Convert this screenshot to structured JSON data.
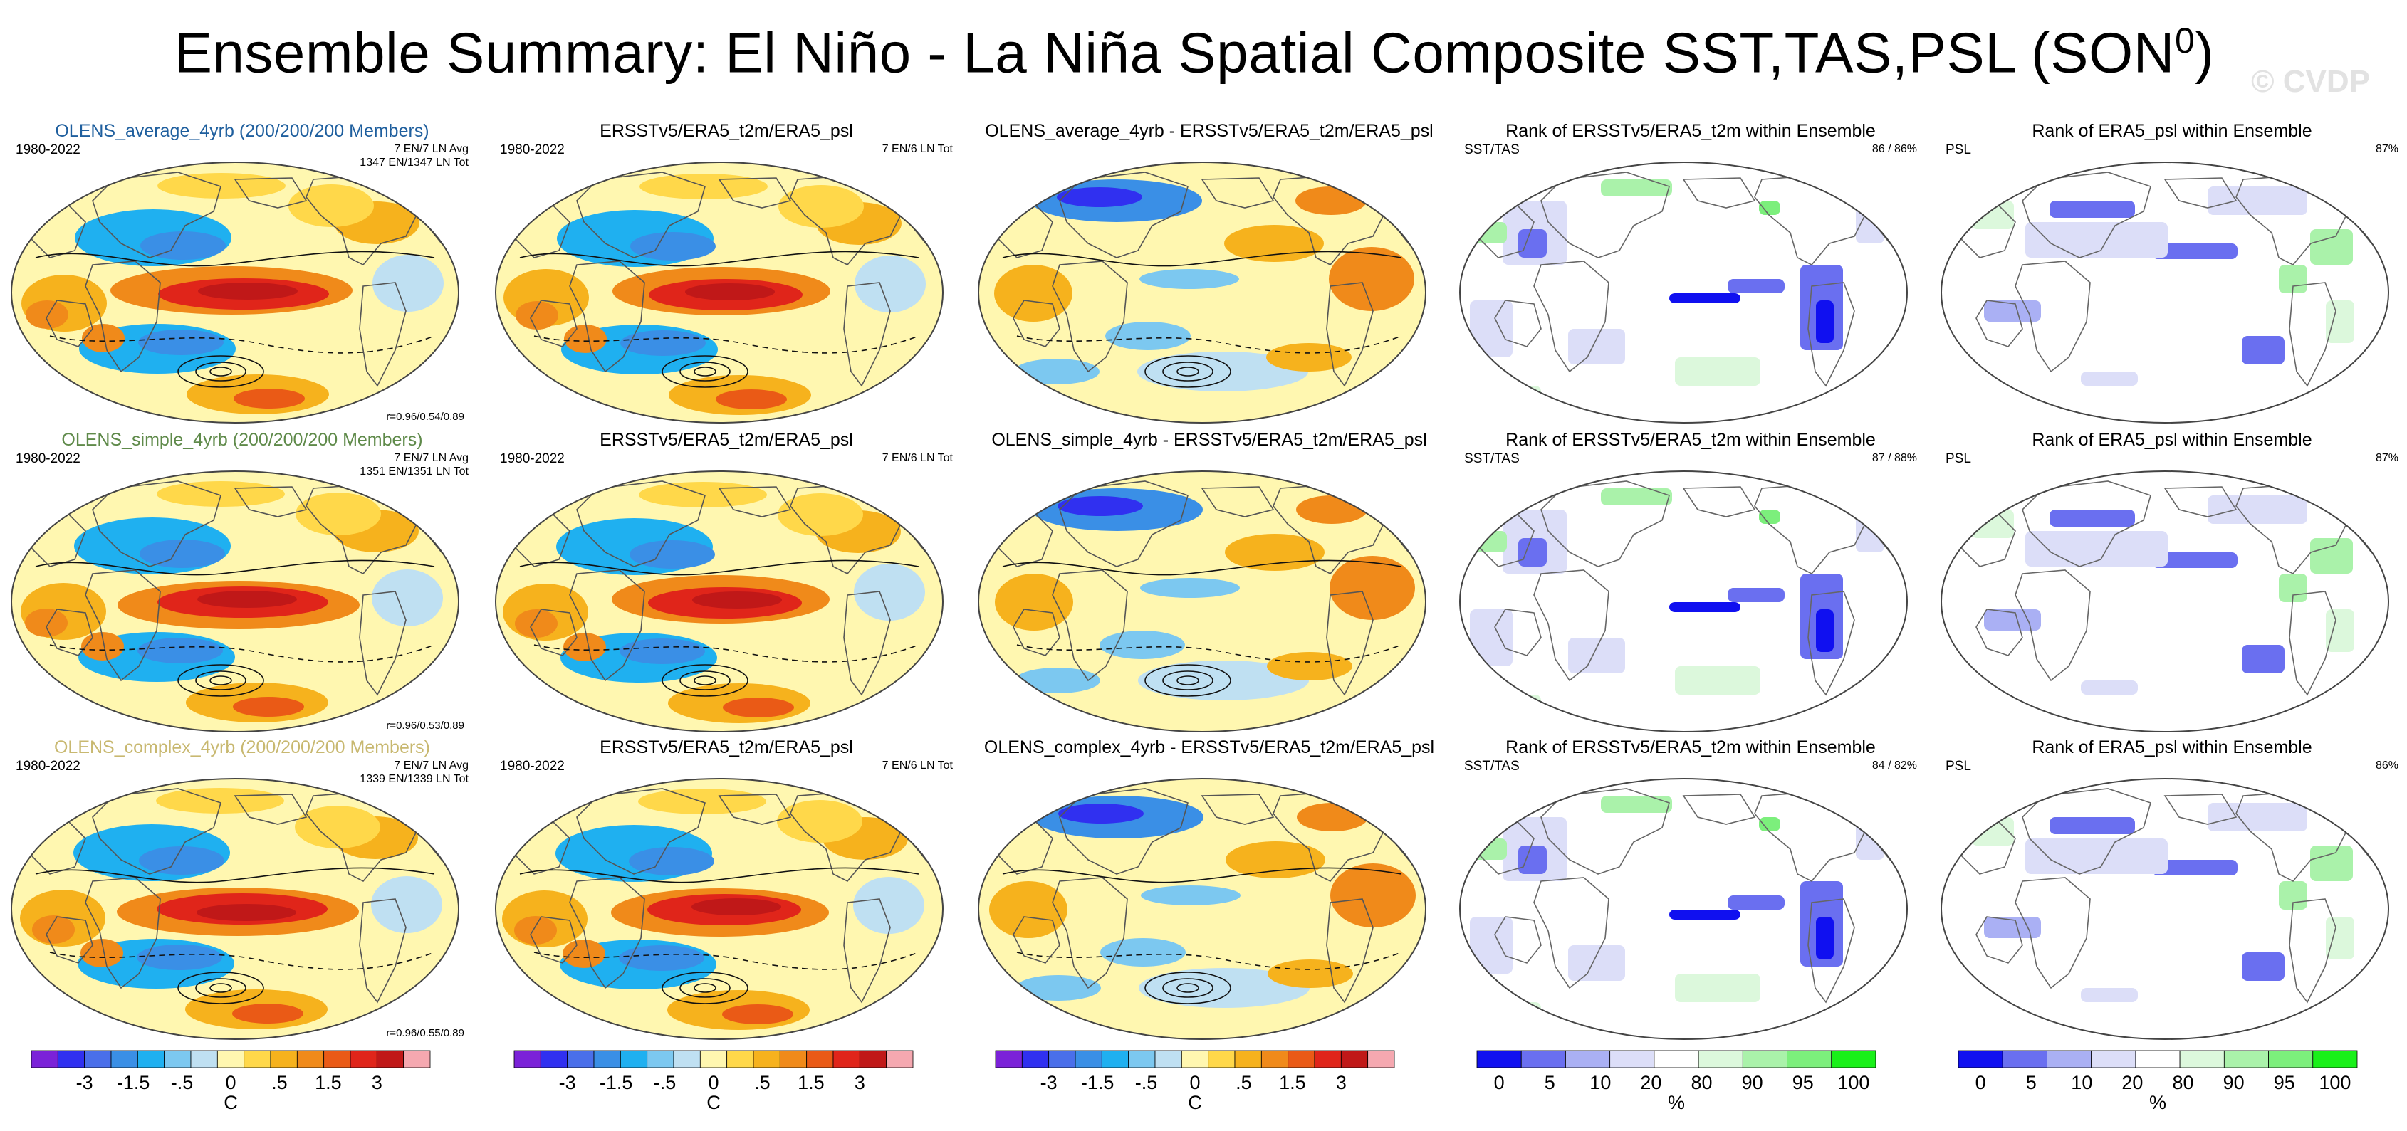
{
  "figure": {
    "title": "Ensemble Summary: El Niño - La Niña Spatial Composite SST,TAS,PSL (SON",
    "title_sup": "0",
    "title_end": ")",
    "watermark": "© CVDP"
  },
  "chart_data": {
    "type": "heatmap",
    "palettes": {
      "diff": [
        "#7b22d8",
        "#3030f0",
        "#4a6fea",
        "#3a8fe6",
        "#1fb0f0",
        "#7cc8f0",
        "#bfe0f2",
        "#fff7b0",
        "#ffd84a",
        "#f6b21d",
        "#f08a1a",
        "#ea5a16",
        "#e0251a",
        "#c01818",
        "#f5a8b0"
      ],
      "rank": [
        "#1010f0",
        "#6a6ff0",
        "#aab0f4",
        "#dcdef8",
        "#ffffff",
        "#dcf8dc",
        "#aaf2aa",
        "#7cef7c",
        "#19f019"
      ]
    },
    "rows": [
      {
        "id": "average",
        "model_title": "OLENS_average_4yrb (200/200/200 Members)",
        "model_title_color": "#1f5f9e",
        "period": "1980-2022",
        "model_info": [
          "7 EN/7 LN Avg",
          "1347 EN/1347 LN Tot"
        ],
        "pattern_r": "r=0.96/0.54/0.89",
        "obs_title": "ERSSTv5/ERA5_t2m/ERA5_psl",
        "obs_period": "1980-2022",
        "obs_info": "7 EN/6 LN Tot",
        "diff_title": "OLENS_average_4yrb - ERSSTv5/ERA5_t2m/ERA5_psl",
        "rank_sst_title": "Rank of ERSSTv5/ERA5_t2m within Ensemble",
        "rank_sst_label": "SST/TAS",
        "rank_sst_pct": "86 /  86%",
        "rank_psl_title": "Rank of ERA5_psl within Ensemble",
        "rank_psl_label": "PSL",
        "rank_psl_pct": "87%"
      },
      {
        "id": "simple",
        "model_title": "OLENS_simple_4yrb (200/200/200 Members)",
        "model_title_color": "#5f8a4a",
        "period": "1980-2022",
        "model_info": [
          "7 EN/7 LN Avg",
          "1351 EN/1351 LN Tot"
        ],
        "pattern_r": "r=0.96/0.53/0.89",
        "obs_title": "ERSSTv5/ERA5_t2m/ERA5_psl",
        "obs_period": "1980-2022",
        "obs_info": "7 EN/6 LN Tot",
        "diff_title": "OLENS_simple_4yrb - ERSSTv5/ERA5_t2m/ERA5_psl",
        "rank_sst_title": "Rank of ERSSTv5/ERA5_t2m within Ensemble",
        "rank_sst_label": "SST/TAS",
        "rank_sst_pct": "87 /  88%",
        "rank_psl_title": "Rank of ERA5_psl within Ensemble",
        "rank_psl_label": "PSL",
        "rank_psl_pct": "87%"
      },
      {
        "id": "complex",
        "model_title": "OLENS_complex_4yrb (200/200/200 Members)",
        "model_title_color": "#c8b870",
        "period": "1980-2022",
        "model_info": [
          "7 EN/7 LN Avg",
          "1339 EN/1339 LN Tot"
        ],
        "pattern_r": "r=0.96/0.55/0.89",
        "obs_title": "ERSSTv5/ERA5_t2m/ERA5_psl",
        "obs_period": "1980-2022",
        "obs_info": "7 EN/6 LN Tot",
        "diff_title": "OLENS_complex_4yrb - ERSSTv5/ERA5_t2m/ERA5_psl",
        "rank_sst_title": "Rank of ERSSTv5/ERA5_t2m within Ensemble",
        "rank_sst_label": "SST/TAS",
        "rank_sst_pct": "84 /  82%",
        "rank_psl_title": "Rank of ERA5_psl within Ensemble",
        "rank_psl_label": "PSL",
        "rank_psl_pct": "86%"
      }
    ],
    "colorbars": [
      {
        "kind": "diff",
        "ticks": [
          "-3",
          "-1.5",
          "-.5",
          "0",
          ".5",
          "1.5",
          "3"
        ],
        "unit": "C"
      },
      {
        "kind": "diff",
        "ticks": [
          "-3",
          "-1.5",
          "-.5",
          "0",
          ".5",
          "1.5",
          "3"
        ],
        "unit": "C"
      },
      {
        "kind": "diff",
        "ticks": [
          "-3",
          "-1.5",
          "-.5",
          "0",
          ".5",
          "1.5",
          "3"
        ],
        "unit": "C"
      },
      {
        "kind": "rank",
        "ticks": [
          "0",
          "5",
          "10",
          "20",
          "80",
          "90",
          "95",
          "100"
        ],
        "unit": "%"
      },
      {
        "kind": "rank",
        "ticks": [
          "0",
          "5",
          "10",
          "20",
          "80",
          "90",
          "95",
          "100"
        ],
        "unit": "%"
      }
    ]
  }
}
